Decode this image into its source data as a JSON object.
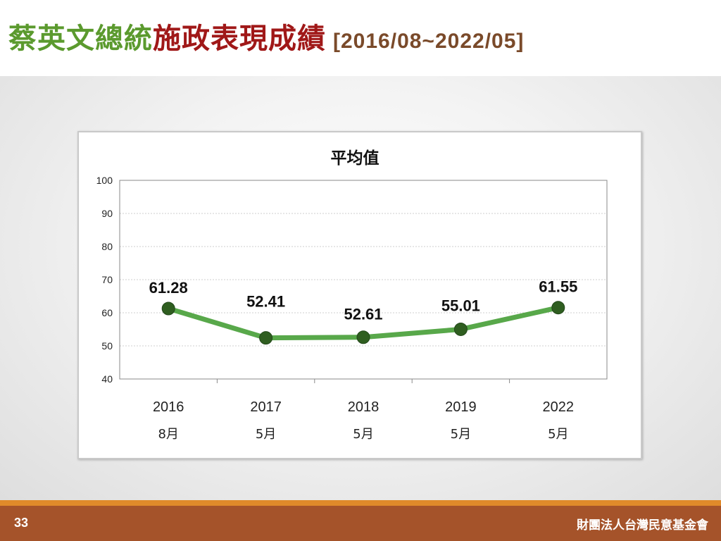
{
  "slide": {
    "title_green": "蔡英文總統",
    "title_red": "施政表現成績",
    "title_range": "[2016/08~2022/05]",
    "page_number": "33",
    "organization": "財團法人台灣民意基金會"
  },
  "colors": {
    "title_green": "#5b9a2e",
    "title_red": "#a01818",
    "line": "#58a84a",
    "marker": "#2f5e20",
    "footer": "#a5532a",
    "footer_stripe": "#e08a2a"
  },
  "chart_data": {
    "type": "line",
    "title": "平均值",
    "categories": [
      {
        "year": "2016",
        "month": "8月"
      },
      {
        "year": "2017",
        "month": "5月"
      },
      {
        "year": "2018",
        "month": "5月"
      },
      {
        "year": "2019",
        "month": "5月"
      },
      {
        "year": "2022",
        "month": "5月"
      }
    ],
    "series": [
      {
        "values": [
          61.28,
          52.41,
          52.61,
          55.01,
          61.55
        ],
        "labels": [
          "61.28",
          "52.41",
          "52.61",
          "55.01",
          "61.55"
        ]
      }
    ],
    "ylim": [
      40,
      100
    ],
    "yticks": [
      40,
      50,
      60,
      70,
      80,
      90,
      100
    ],
    "grid": true,
    "legend": "none"
  }
}
